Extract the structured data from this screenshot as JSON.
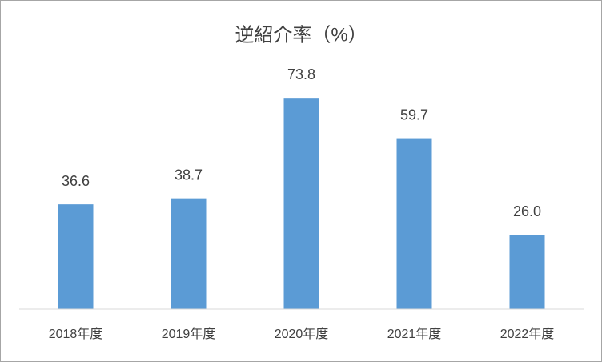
{
  "chart_data": {
    "type": "bar",
    "title": "逆紹介率（%）",
    "categories": [
      "2018年度",
      "2019年度",
      "2020年度",
      "2021年度",
      "2022年度"
    ],
    "values": [
      36.6,
      38.7,
      73.8,
      59.7,
      26.0
    ],
    "value_labels": [
      "36.6",
      "38.7",
      "73.8",
      "59.7",
      "26.0"
    ],
    "color": "#5b9bd5",
    "ylim": [
      0,
      80
    ]
  }
}
